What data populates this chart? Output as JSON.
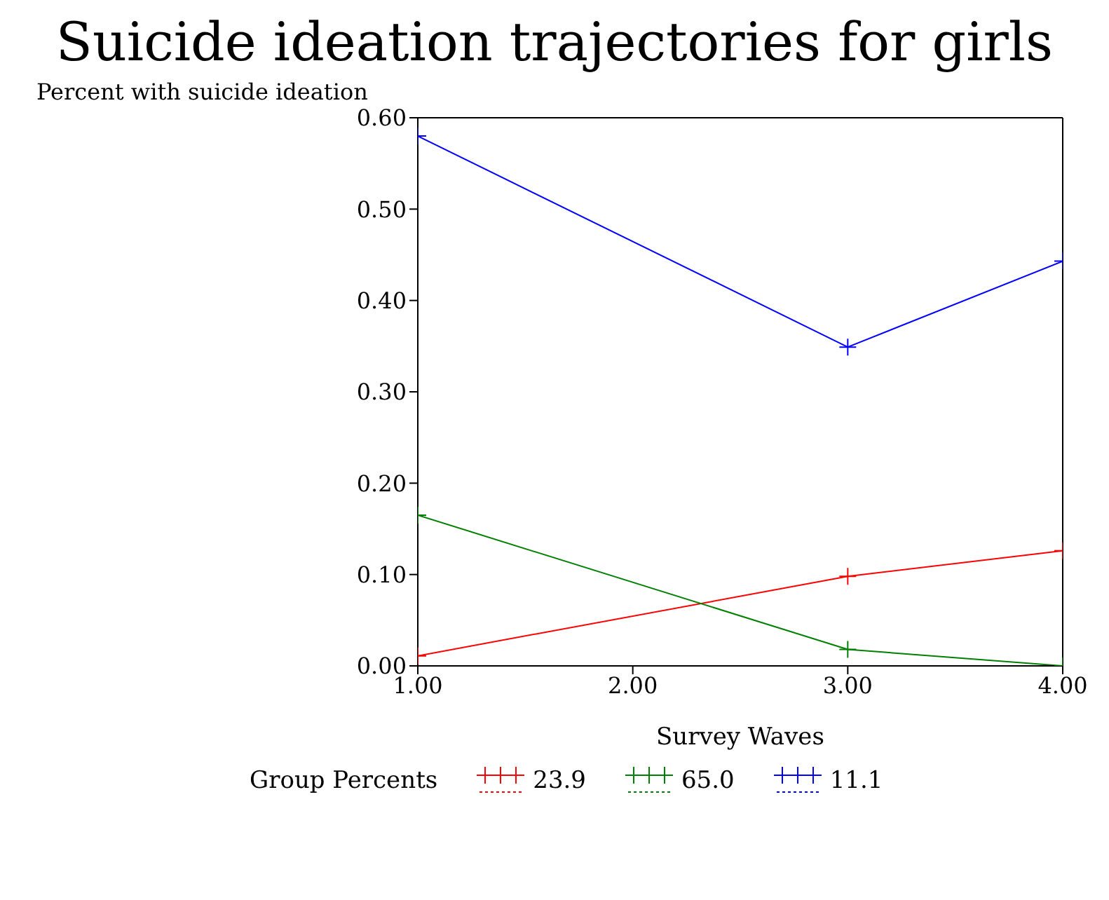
{
  "chart_data": {
    "type": "line",
    "title": "Suicide ideation trajectories for girls",
    "xlabel": "Survey Waves",
    "ylabel": "Percent with suicide ideation",
    "legend_title": "Group Percents",
    "x": [
      1,
      3,
      4
    ],
    "series": [
      {
        "name": "23.9",
        "color": "#ff0000",
        "values": [
          0.011,
          0.098,
          0.126
        ]
      },
      {
        "name": "65.0",
        "color": "#008000",
        "values": [
          0.165,
          0.018,
          0.0
        ]
      },
      {
        "name": "11.1",
        "color": "#0000ff",
        "values": [
          0.58,
          0.349,
          0.443
        ]
      }
    ],
    "xlim": [
      1,
      4
    ],
    "xticks": [
      {
        "value": 1,
        "label": "1.00"
      },
      {
        "value": 2,
        "label": "2.00"
      },
      {
        "value": 3,
        "label": "3.00"
      },
      {
        "value": 4,
        "label": "4.00"
      }
    ],
    "ylim": [
      0,
      0.6
    ],
    "yticks": [
      {
        "value": 0,
        "label": "0.00"
      },
      {
        "value": 0.1,
        "label": "0.10"
      },
      {
        "value": 0.2,
        "label": "0.20"
      },
      {
        "value": 0.3,
        "label": "0.30"
      },
      {
        "value": 0.4,
        "label": "0.40"
      },
      {
        "value": 0.5,
        "label": "0.50"
      },
      {
        "value": 0.6,
        "label": "0.60"
      }
    ],
    "grid": false,
    "legend": "bottom",
    "marker": "cross",
    "line_style": "solid"
  }
}
